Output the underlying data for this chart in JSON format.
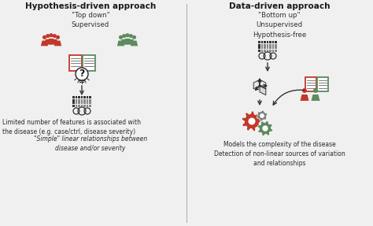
{
  "bg_color": "#f0f0f0",
  "title_left": "Hypothesis-driven approach",
  "title_right": "Data-driven approach",
  "subtitle_left": "\"Top down\"\nSupervised",
  "subtitle_right": "\"Bottom up\"\nUnsupervised\nHypothesis-free",
  "caption_left_1": "Limited number of features is associated with\nthe disease (e.g. case/ctrl, disease severity)",
  "caption_left_2": "\"Simple\" linear relationships between\ndisease and/or severity",
  "caption_right_1": "Models the complexity of the disease\nDetection of non-linear sources of variation\nand relationships",
  "red_color": "#c0392b",
  "green_color": "#5d8a5e",
  "dark_color": "#2c2c2c",
  "gear_red": "#c0392b",
  "gear_green": "#5d8a5e",
  "gear_dark": "#7f7f7f",
  "title_fontsize": 7.5,
  "sub_fontsize": 6.2,
  "cap_fontsize": 5.5
}
